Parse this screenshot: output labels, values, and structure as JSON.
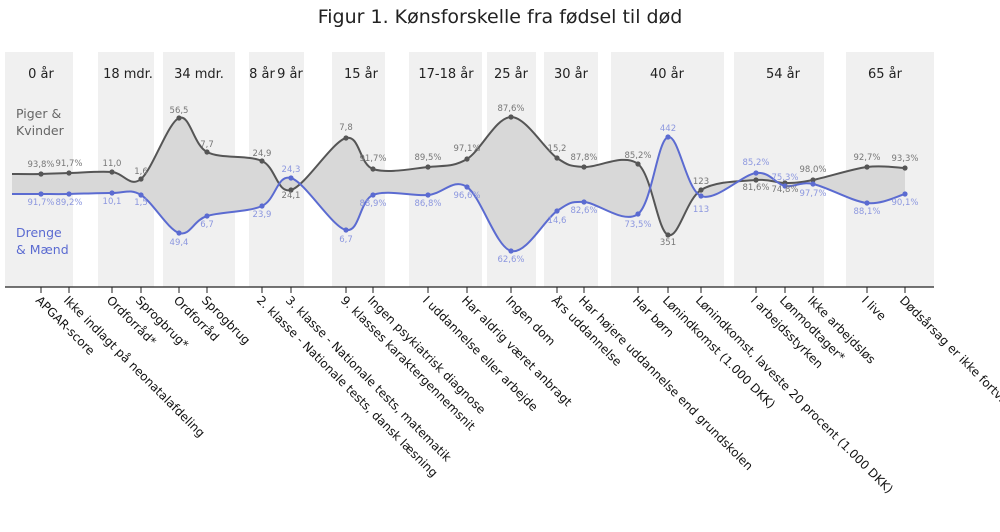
{
  "chart_data": {
    "type": "line",
    "title": "Figur 1. Kønsforskelle fra fødsel til død",
    "colors": {
      "female": "#555555",
      "male": "#5b6bd1",
      "band": "#f0f0f0",
      "fill": "#d8d8d8"
    },
    "age_groups": [
      "0 år",
      "18 mdr.",
      "34 mdr.",
      "8 år",
      "9 år",
      "15 år",
      "17-18 år",
      "25 år",
      "30 år",
      "40 år",
      "54 år",
      "65 år"
    ],
    "categories": [
      "APGAR-score",
      "Ikke indlagt på neonatalafdeling",
      "Ordforråd*",
      "Sprogbrug*",
      "Ordforråd",
      "Sprogbrug",
      "2. klasse - Nationale tests, dansk læsning",
      "3. klasse - Nationale tests, matematik",
      "9. klasses karaktergennemsnit",
      "Ingen psykiatrisk diagnose",
      "I uddannelse eller arbejde",
      "Har aldrig været anbragt",
      "Ingen dom",
      "Års uddannelse",
      "Har højere uddannelse end grundskolen",
      "Har børn",
      "Lønindkomst (1.000 DKK)",
      "Lønindkomst, laveste 20 procent (1.000 DKK)",
      "I arbejdsstyrken",
      "Lønmodtager*",
      "Ikke arbejdsløs",
      "I live",
      "Dødsårsag er ikke fortvivlelsesdødsfald"
    ],
    "series": [
      {
        "name": "Piger & Kvinder",
        "labels": [
          "93,8%",
          "91,7%",
          "11,0",
          "1,6",
          "56,5",
          "7,7",
          "24,9",
          "24,1",
          "7,8",
          "91,7%",
          "89,5%",
          "97,1%",
          "87,6%",
          "15,2",
          "87,8%",
          "85,2%",
          "351",
          "123",
          "81,6%",
          "74,8%",
          "98,0%",
          "92,7%",
          "93,3%"
        ]
      },
      {
        "name": "Drenge & Mænd",
        "labels": [
          "91,7%",
          "89,2%",
          "10,1",
          "1,5",
          "49,4",
          "6,7",
          "23,9",
          "24,3",
          "6,7",
          "88,9%",
          "86,8%",
          "96,6%",
          "62,6%",
          "14,6",
          "82,6%",
          "73,5%",
          "442",
          "113",
          "85,2%",
          "75,3%",
          "97,7%",
          "88,1%",
          "90,1%"
        ]
      }
    ]
  }
}
